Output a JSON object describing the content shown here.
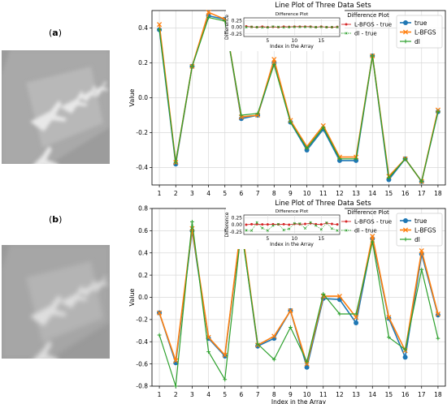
{
  "panels": [
    {
      "label_open": "(",
      "label_letter": "a",
      "label_close": ")"
    },
    {
      "label_open": "(",
      "label_letter": "b",
      "label_close": ")"
    }
  ],
  "colors": {
    "true": "#1f77b4",
    "lbfgs": "#ff7f0e",
    "dl": "#2ca02c",
    "diff_lbfgs": "#d62728",
    "grid": "#d9d9d9"
  },
  "chart_data": [
    {
      "type": "line",
      "title": "Line Plot of Three Data Sets",
      "xlabel": "",
      "ylabel": "Value",
      "x": [
        1,
        2,
        3,
        4,
        5,
        6,
        7,
        8,
        9,
        10,
        11,
        12,
        13,
        14,
        15,
        16,
        17,
        18
      ],
      "ylim": [
        -0.5,
        0.5
      ],
      "yticks": [
        -0.4,
        -0.2,
        0.0,
        0.2,
        0.4
      ],
      "grid": true,
      "legend": "top-right",
      "series": [
        {
          "name": "true",
          "values": [
            0.39,
            -0.38,
            0.18,
            0.47,
            0.45,
            -0.12,
            -0.1,
            0.2,
            -0.14,
            -0.3,
            -0.18,
            -0.36,
            -0.36,
            0.24,
            -0.47,
            -0.35,
            -0.48,
            -0.08
          ]
        },
        {
          "name": "L-BFGS",
          "values": [
            0.42,
            -0.37,
            0.18,
            0.49,
            0.45,
            -0.11,
            -0.1,
            0.22,
            -0.13,
            -0.28,
            -0.16,
            -0.34,
            -0.34,
            0.24,
            -0.45,
            -0.35,
            -0.48,
            -0.07
          ]
        },
        {
          "name": "dl",
          "values": [
            0.39,
            -0.37,
            0.18,
            0.46,
            0.44,
            -0.1,
            -0.09,
            0.19,
            -0.14,
            -0.29,
            -0.17,
            -0.35,
            -0.35,
            0.24,
            -0.46,
            -0.35,
            -0.48,
            -0.08
          ]
        }
      ],
      "inset": {
        "title": "Difference Plot",
        "xlabel": "Index in the Array",
        "ylabel": "Difference",
        "ylim": [
          -0.35,
          0.35
        ],
        "yticks": [
          0.25,
          0.0,
          -0.25
        ],
        "xticks": [
          5,
          10,
          15
        ],
        "legend_title": "Difference Plot",
        "series": [
          {
            "name": "L-BFGS - true",
            "values": [
              0.03,
              0.01,
              0.0,
              0.02,
              0.0,
              0.01,
              0.0,
              0.02,
              0.01,
              0.02,
              0.02,
              0.02,
              0.02,
              0.0,
              0.02,
              0.0,
              0.0,
              0.01
            ]
          },
          {
            "name": "dl - true",
            "values": [
              0.0,
              0.01,
              0.0,
              -0.01,
              -0.01,
              0.02,
              0.01,
              -0.01,
              0.0,
              0.01,
              0.01,
              0.01,
              0.01,
              0.0,
              0.01,
              0.0,
              0.0,
              0.0
            ]
          }
        ]
      }
    },
    {
      "type": "line",
      "title": "Line Plot of Three Data Sets",
      "xlabel": "Index in the Array",
      "ylabel": "Value",
      "x": [
        1,
        2,
        3,
        4,
        5,
        6,
        7,
        8,
        9,
        10,
        11,
        12,
        13,
        14,
        15,
        16,
        17,
        18
      ],
      "ylim": [
        -0.8,
        0.8
      ],
      "yticks": [
        -0.8,
        -0.6,
        -0.4,
        -0.2,
        0.0,
        0.2,
        0.4,
        0.6,
        0.8
      ],
      "grid": true,
      "legend": "top-right",
      "series": [
        {
          "name": "true",
          "values": [
            -0.14,
            -0.59,
            0.6,
            -0.37,
            -0.53,
            0.64,
            -0.44,
            -0.37,
            -0.12,
            -0.63,
            -0.01,
            -0.02,
            -0.23,
            0.53,
            -0.19,
            -0.54,
            0.39,
            -0.16
          ]
        },
        {
          "name": "L-BFGS",
          "values": [
            -0.14,
            -0.57,
            0.62,
            -0.36,
            -0.52,
            0.66,
            -0.43,
            -0.35,
            -0.12,
            -0.6,
            0.01,
            0.01,
            -0.18,
            0.55,
            -0.18,
            -0.48,
            0.42,
            -0.15
          ]
        },
        {
          "name": "dl",
          "values": [
            -0.34,
            -0.8,
            0.68,
            -0.49,
            -0.74,
            0.61,
            -0.42,
            -0.56,
            -0.27,
            -0.58,
            0.03,
            -0.15,
            -0.15,
            0.5,
            -0.36,
            -0.47,
            0.25,
            -0.37
          ]
        }
      ],
      "inset": {
        "title": "Difference Plot",
        "xlabel": "Index in the Array",
        "ylabel": "Difference",
        "ylim": [
          -0.35,
          0.35
        ],
        "yticks": [
          0.25,
          0.0,
          -0.25
        ],
        "xticks": [
          5,
          10,
          15
        ],
        "legend_title": "Difference Plot",
        "series": [
          {
            "name": "L-BFGS - true",
            "values": [
              0.0,
              0.02,
              0.02,
              0.01,
              0.01,
              0.02,
              0.01,
              0.02,
              0.0,
              0.03,
              0.02,
              0.03,
              0.05,
              0.02,
              0.01,
              0.06,
              0.03,
              0.01
            ]
          },
          {
            "name": "dl - true",
            "values": [
              -0.2,
              -0.21,
              0.08,
              -0.12,
              -0.21,
              -0.03,
              0.02,
              -0.19,
              -0.15,
              0.05,
              0.04,
              -0.13,
              0.08,
              -0.03,
              -0.17,
              0.07,
              -0.14,
              -0.21
            ]
          }
        ]
      }
    }
  ]
}
